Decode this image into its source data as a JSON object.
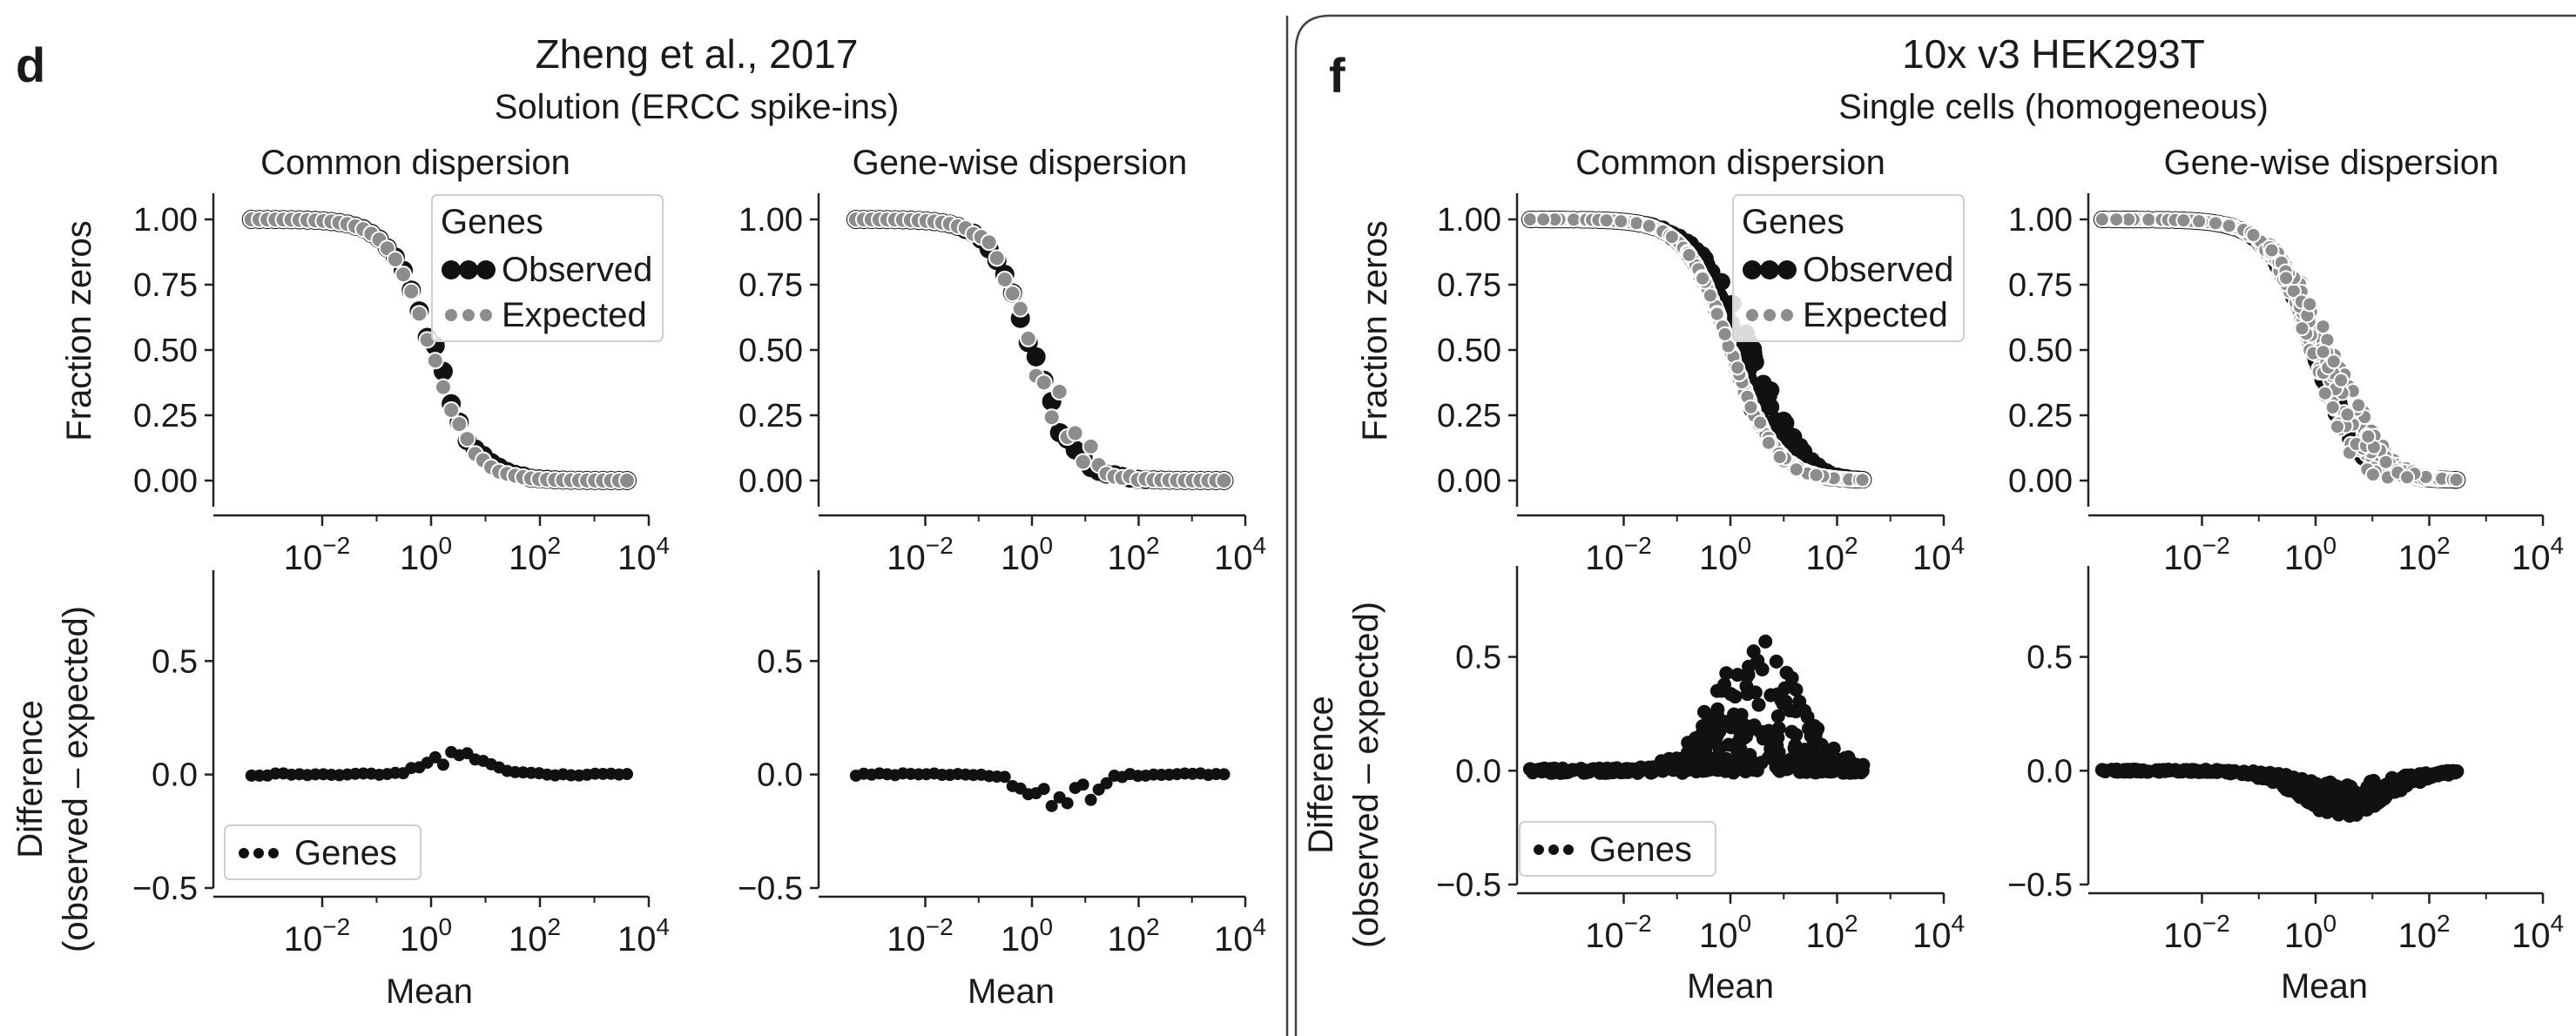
{
  "chart_data": {
    "type": "scatter",
    "observed_color": "#111111",
    "expected_color": "#8c8c8c",
    "panels": [
      {
        "letter": "d",
        "title": "Zheng et al., 2017",
        "subtitle": "Solution (ERCC spike-ins)",
        "col_titles": [
          "Common dispersion",
          "Gene-wise dispersion"
        ],
        "xlabel": "Mean",
        "top_ylabel": "Fraction zeros",
        "bottom_ylabel_line1": "Difference",
        "bottom_ylabel_line2": "(observed – expected)",
        "xlim_log10": [
          -4,
          4
        ],
        "top_ylim": [
          -0.1,
          1.1
        ],
        "bottom_ylim": [
          -0.5,
          0.9
        ],
        "x_ticks": [
          {
            "base": "10",
            "exp": "−2"
          },
          {
            "base": "10",
            "exp": "0"
          },
          {
            "base": "10",
            "exp": "2"
          },
          {
            "base": "10",
            "exp": "4"
          }
        ],
        "x_tick_values_log10": [
          -2,
          0,
          2,
          4
        ],
        "top_yticks": [
          "0.00",
          "0.25",
          "0.50",
          "0.75",
          "1.00"
        ],
        "top_ytick_values": [
          0,
          0.25,
          0.5,
          0.75,
          1.0
        ],
        "bottom_yticks": [
          "−0.5",
          "0.0",
          "0.5"
        ],
        "bottom_ytick_values": [
          -0.5,
          0,
          0.5
        ],
        "legend_title": "Genes",
        "legend_observed": "Observed",
        "legend_expected": "Expected",
        "legend_genes": "Genes",
        "n_points": 48,
        "logmean_range": [
          -3.3,
          3.6
        ],
        "midpoint_log10": 0,
        "steepness": 2.6,
        "common_observed_jitter": 0.05,
        "common_expected_jitter": 0.02,
        "gene_observed_jitter": 0.06,
        "gene_expected_jitter": 0.09,
        "common_diff_peak": 0.12,
        "gene_diff_peak": -0.24
      },
      {
        "letter": "f",
        "title": "10x v3 HEK293T",
        "subtitle": "Single cells (homogeneous)",
        "col_titles": [
          "Common dispersion",
          "Gene-wise dispersion"
        ],
        "xlabel": "Mean",
        "top_ylabel": "Fraction zeros",
        "bottom_ylabel_line1": "Difference",
        "bottom_ylabel_line2": "(observed – expected)",
        "xlim_log10": [
          -4,
          4
        ],
        "top_ylim": [
          -0.1,
          1.1
        ],
        "bottom_ylim": [
          -0.5,
          0.9
        ],
        "x_ticks": [
          {
            "base": "10",
            "exp": "−2"
          },
          {
            "base": "10",
            "exp": "0"
          },
          {
            "base": "10",
            "exp": "2"
          },
          {
            "base": "10",
            "exp": "4"
          }
        ],
        "x_tick_values_log10": [
          -2,
          0,
          2,
          4
        ],
        "top_yticks": [
          "0.00",
          "0.25",
          "0.50",
          "0.75",
          "1.00"
        ],
        "top_ytick_values": [
          0,
          0.25,
          0.5,
          0.75,
          1.0
        ],
        "bottom_yticks": [
          "−0.5",
          "0.0",
          "0.5"
        ],
        "bottom_ytick_values": [
          -0.5,
          0,
          0.5
        ],
        "legend_title": "Genes",
        "legend_observed": "Observed",
        "legend_expected": "Expected",
        "legend_genes": "Genes",
        "n_points": 420,
        "logmean_range": [
          -3.8,
          2.5
        ],
        "midpoint_log10": 0,
        "steepness": 2.4,
        "common_observed_jitter": 0.16,
        "common_expected_jitter": 0.03,
        "gene_observed_jitter": 0.08,
        "gene_expected_jitter": 0.12,
        "common_diff_peak": 0.65,
        "gene_diff_peak": -0.2
      }
    ]
  }
}
